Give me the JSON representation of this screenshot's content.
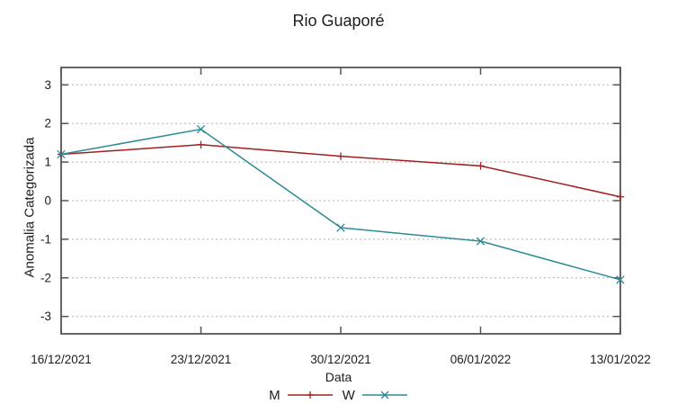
{
  "chart_data": {
    "type": "line",
    "title": "Rio Guaporé",
    "xlabel": "Data",
    "ylabel": "Anomalia Categorizada",
    "x_tick_labels": [
      "16/12/2021",
      "23/12/2021",
      "30/12/2021",
      "06/01/2022",
      "13/01/2022"
    ],
    "y_ticks": [
      -3,
      -2,
      -1,
      0,
      1,
      2,
      3
    ],
    "ylim": [
      -3.45,
      3.45
    ],
    "grid": "horizontal-dotted",
    "legend_position": "bottom-center",
    "series": [
      {
        "name": "M",
        "marker": "plus",
        "color": "#a02020",
        "values": [
          1.2,
          1.45,
          1.15,
          0.9,
          0.1
        ]
      },
      {
        "name": "W",
        "marker": "cross",
        "color": "#2e8b96",
        "values": [
          1.2,
          1.85,
          -0.7,
          -1.05,
          -2.05
        ]
      }
    ],
    "colors": {
      "grid": "#b0b0b0",
      "border": "#555555",
      "text": "#1c1c1c"
    }
  }
}
